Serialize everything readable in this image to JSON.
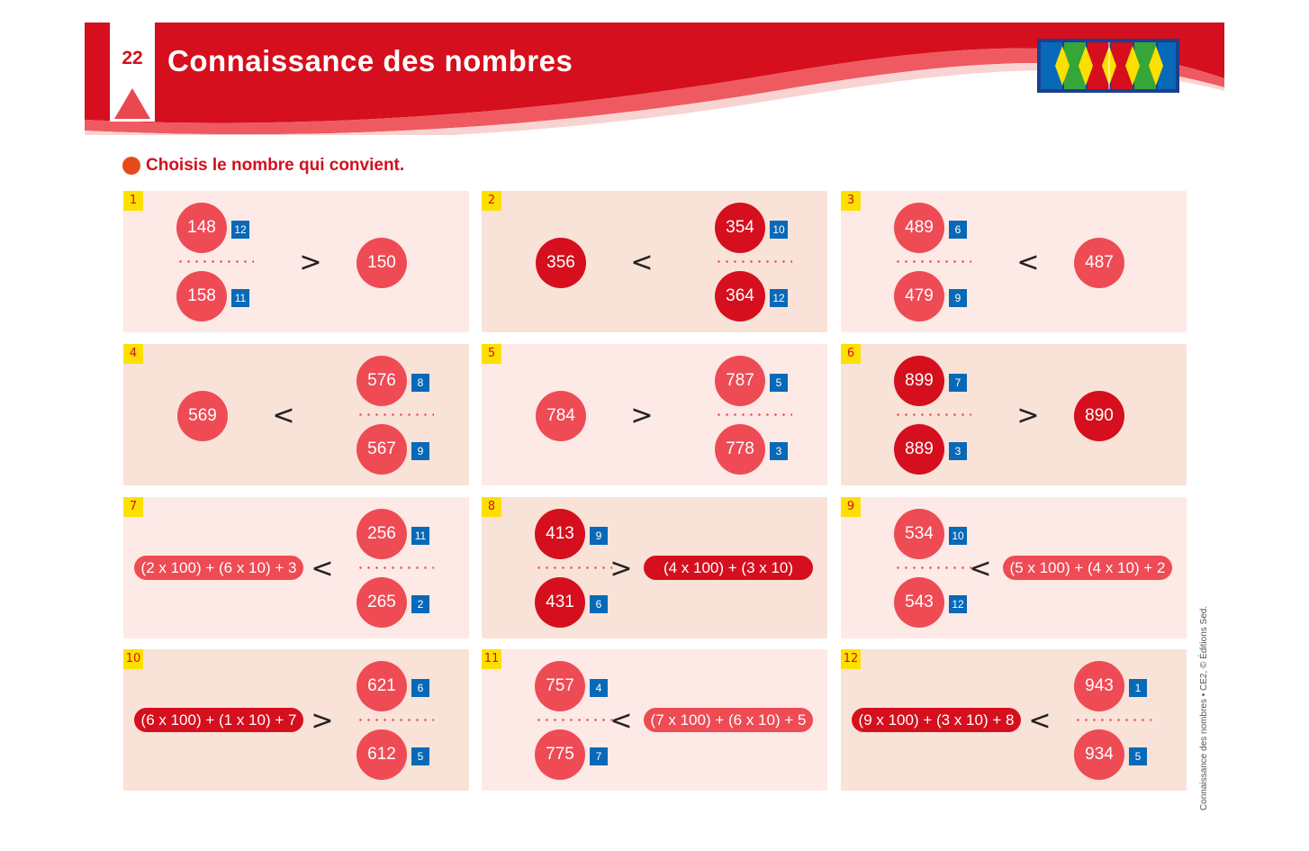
{
  "header": {
    "page_number": "22",
    "title": "Connaissance des nombres"
  },
  "instruction": "Choisis le nombre qui convient.",
  "colors": {
    "header_red": "#d50f1d",
    "pale_circle": "#ee4b55",
    "deep_circle": "#d50f1d",
    "badge_yellow": "#fde000",
    "score_blue": "#0769b7",
    "card_light": "#fde9e5",
    "card_dark": "#f9e2d8"
  },
  "logo": {
    "icon": "diamond-pattern-logo-icon"
  },
  "exercises": [
    {
      "number": "1",
      "operator": ">",
      "left": {
        "top": "148",
        "top_score": "12",
        "bottom": "158",
        "bottom_score": "11"
      },
      "right": {
        "single": "150"
      }
    },
    {
      "number": "2",
      "operator": "<",
      "left": {
        "single": "356"
      },
      "right": {
        "top": "354",
        "top_score": "10",
        "bottom": "364",
        "bottom_score": "12"
      }
    },
    {
      "number": "3",
      "operator": "<",
      "left": {
        "top": "489",
        "top_score": "6",
        "bottom": "479",
        "bottom_score": "9"
      },
      "right": {
        "single": "487"
      }
    },
    {
      "number": "4",
      "operator": "<",
      "left": {
        "single": "569"
      },
      "right": {
        "top": "576",
        "top_score": "8",
        "bottom": "567",
        "bottom_score": "9"
      }
    },
    {
      "number": "5",
      "operator": ">",
      "left": {
        "single": "784"
      },
      "right": {
        "top": "787",
        "top_score": "5",
        "bottom": "778",
        "bottom_score": "3"
      }
    },
    {
      "number": "6",
      "operator": ">",
      "left": {
        "top": "899",
        "top_score": "7",
        "bottom": "889",
        "bottom_score": "3"
      },
      "right": {
        "single": "890"
      }
    },
    {
      "number": "7",
      "operator": "<",
      "left": {
        "expression": "(2 x 100) + (6 x 10) + 3"
      },
      "right": {
        "top": "256",
        "top_score": "11",
        "bottom": "265",
        "bottom_score": "2"
      }
    },
    {
      "number": "8",
      "operator": ">",
      "left": {
        "top": "413",
        "top_score": "9",
        "bottom": "431",
        "bottom_score": "6"
      },
      "right": {
        "expression": "(4 x 100) + (3 x 10)"
      }
    },
    {
      "number": "9",
      "operator": "<",
      "left": {
        "top": "534",
        "top_score": "10",
        "bottom": "543",
        "bottom_score": "12"
      },
      "right": {
        "expression": "(5 x 100) + (4 x 10) + 2"
      }
    },
    {
      "number": "10",
      "operator": ">",
      "left": {
        "expression": "(6 x 100) + (1 x 10) + 7"
      },
      "right": {
        "top": "621",
        "top_score": "6",
        "bottom": "612",
        "bottom_score": "5"
      }
    },
    {
      "number": "11",
      "operator": "<",
      "left": {
        "top": "757",
        "top_score": "4",
        "bottom": "775",
        "bottom_score": "7"
      },
      "right": {
        "expression": "(7 x 100) + (6 x 10) + 5"
      }
    },
    {
      "number": "12",
      "operator": "<",
      "left": {
        "expression": "(9 x 100) + (3 x 10) + 8"
      },
      "right": {
        "top": "943",
        "top_score": "1",
        "bottom": "934",
        "bottom_score": "5"
      }
    }
  ],
  "credit": "Connaissance des nombres  •  CE2, © Éditions Sed."
}
